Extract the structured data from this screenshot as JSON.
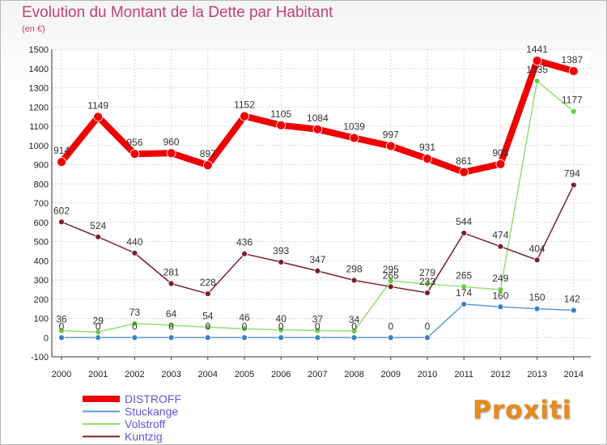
{
  "chart_data": {
    "type": "line",
    "title": "Evolution du Montant de la Dette par Habitant",
    "subtitle": "(en €)",
    "x": [
      "2000",
      "2001",
      "2002",
      "2003",
      "2004",
      "2005",
      "2006",
      "2007",
      "2008",
      "2009",
      "2010",
      "2011",
      "2012",
      "2013",
      "2014"
    ],
    "ylim": [
      -100,
      1500
    ],
    "yticks": [
      -100,
      0,
      100,
      200,
      300,
      400,
      500,
      600,
      700,
      800,
      900,
      1000,
      1100,
      1200,
      1300,
      1400,
      1500
    ],
    "grid": true,
    "legend_position": "bottom-left",
    "series": [
      {
        "name": "DISTROFF",
        "color": "#ee0000",
        "point_color": "#ee0000",
        "values": [
          914,
          1149,
          956,
          960,
          897,
          1152,
          1105,
          1084,
          1039,
          997,
          931,
          861,
          903,
          1441,
          1387
        ]
      },
      {
        "name": "Stuckange",
        "color": "#5b9bd5",
        "point_color": "#3f7fc4",
        "values": [
          0,
          0,
          0,
          0,
          0,
          0,
          0,
          0,
          0,
          0,
          0,
          174,
          160,
          150,
          142
        ]
      },
      {
        "name": "Volstroff",
        "color": "#90e070",
        "point_color": "#6acc44",
        "values": [
          36,
          29,
          73,
          64,
          54,
          46,
          40,
          37,
          34,
          295,
          279,
          265,
          249,
          1335,
          1177
        ]
      },
      {
        "name": "Kuntzig",
        "color": "#7a1f2a",
        "point_color": "#7a1f2a",
        "values": [
          602,
          524,
          440,
          281,
          228,
          436,
          393,
          347,
          298,
          265,
          233,
          544,
          474,
          404,
          794
        ]
      }
    ]
  },
  "logo_text": "Proxiti"
}
